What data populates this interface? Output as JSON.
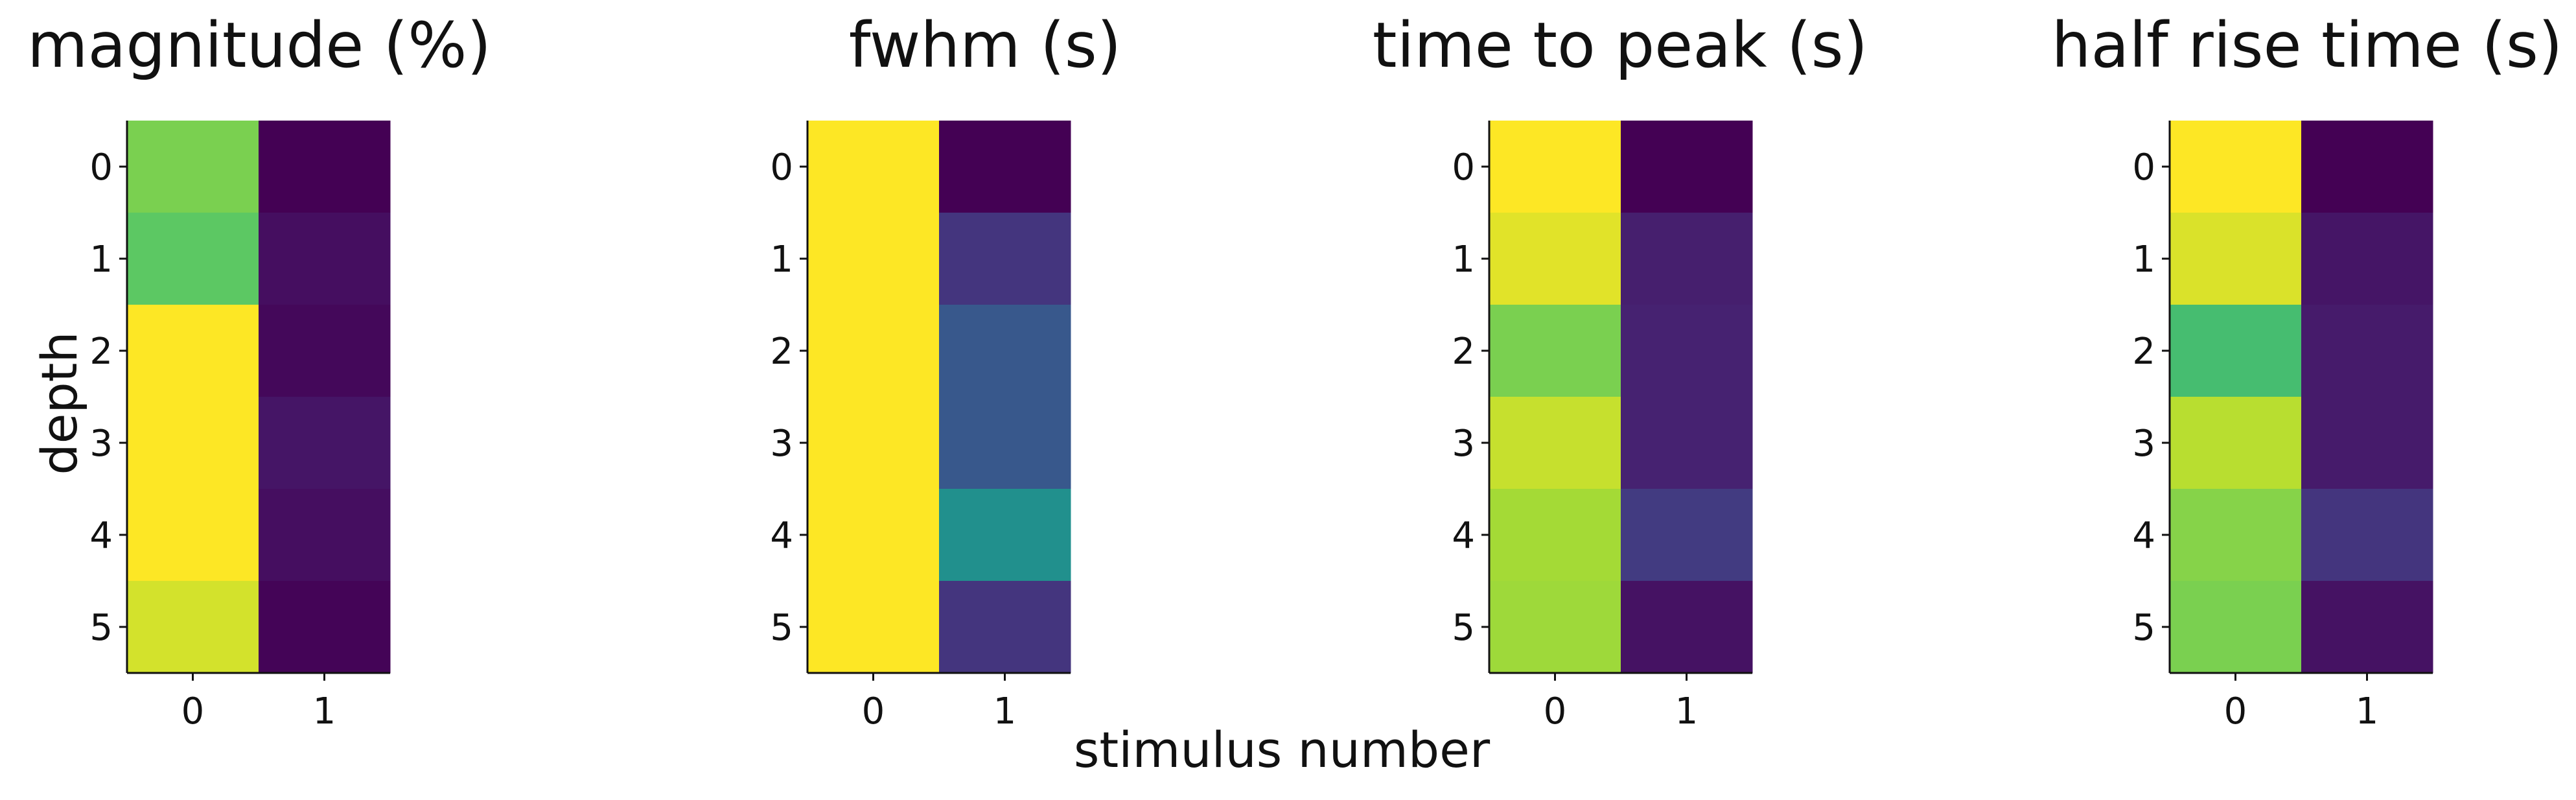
{
  "figure": {
    "xlabel": "stimulus number",
    "ylabel": "depth",
    "colormap": "viridis"
  },
  "chart_data": [
    {
      "type": "heatmap",
      "title": "magnitude (%)",
      "x_ticks": [
        "0",
        "1"
      ],
      "y_ticks": [
        "0",
        "1",
        "2",
        "3",
        "4",
        "5"
      ],
      "values": [
        [
          0.8,
          0.0
        ],
        [
          0.75,
          0.04
        ],
        [
          1.0,
          0.02
        ],
        [
          1.0,
          0.06
        ],
        [
          1.0,
          0.04
        ],
        [
          0.94,
          0.01
        ]
      ],
      "scale": "relative (0 = min, 1 = max)"
    },
    {
      "type": "heatmap",
      "title": "fwhm (s)",
      "x_ticks": [
        "0",
        "1"
      ],
      "y_ticks": [
        "0",
        "1",
        "2",
        "3",
        "4",
        "5"
      ],
      "values": [
        [
          1.0,
          0.0
        ],
        [
          1.0,
          0.16
        ],
        [
          1.0,
          0.28
        ],
        [
          1.0,
          0.28
        ],
        [
          1.0,
          0.5
        ],
        [
          1.0,
          0.16
        ]
      ],
      "scale": "relative (0 = min, 1 = max)"
    },
    {
      "type": "heatmap",
      "title": "time to peak (s)",
      "x_ticks": [
        "0",
        "1"
      ],
      "y_ticks": [
        "0",
        "1",
        "2",
        "3",
        "4",
        "5"
      ],
      "values": [
        [
          1.0,
          0.0
        ],
        [
          0.96,
          0.09
        ],
        [
          0.8,
          0.1
        ],
        [
          0.92,
          0.1
        ],
        [
          0.87,
          0.18
        ],
        [
          0.86,
          0.05
        ]
      ],
      "scale": "relative (0 = min, 1 = max)"
    },
    {
      "type": "heatmap",
      "title": "half rise time (s)",
      "x_ticks": [
        "0",
        "1"
      ],
      "y_ticks": [
        "0",
        "1",
        "2",
        "3",
        "4",
        "5"
      ],
      "values": [
        [
          1.0,
          0.0
        ],
        [
          0.95,
          0.06
        ],
        [
          0.7,
          0.08
        ],
        [
          0.9,
          0.08
        ],
        [
          0.82,
          0.16
        ],
        [
          0.8,
          0.05
        ]
      ],
      "scale": "relative (0 = min, 1 = max)"
    }
  ]
}
